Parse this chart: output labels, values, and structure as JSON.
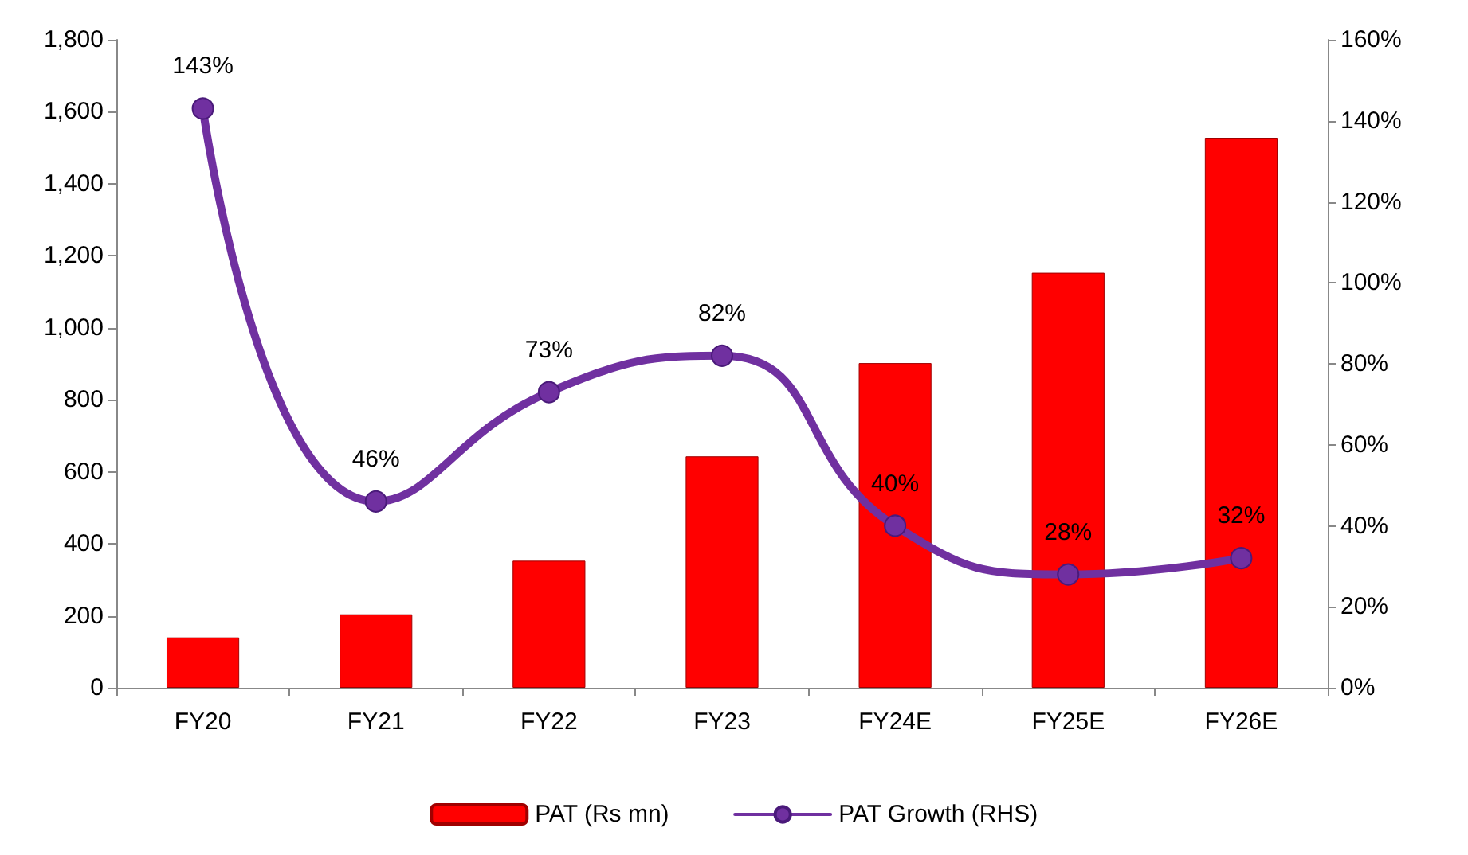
{
  "chart_data": {
    "type": "bar",
    "categories": [
      "FY20",
      "FY21",
      "FY22",
      "FY23",
      "FY24E",
      "FY25E",
      "FY26E"
    ],
    "series": [
      {
        "name": "PAT (Rs mn)",
        "color": "#ff0000",
        "values": [
          140,
          204,
          353,
          643,
          902,
          1153,
          1528
        ]
      },
      {
        "name": "PAT Growth (RHS)",
        "type": "line",
        "axis": "y2",
        "color": "#7030a0",
        "values": [
          143,
          46,
          73,
          82,
          40,
          28,
          32
        ],
        "value_labels": [
          "143%",
          "46%",
          "73%",
          "82%",
          "40%",
          "28%",
          "32%"
        ]
      }
    ],
    "ylim": [
      0,
      1800
    ],
    "yticks": [
      0,
      200,
      400,
      600,
      800,
      {
        "value": 1000,
        "label": "1,000"
      },
      {
        "value": 1200,
        "label": "1,200"
      },
      {
        "value": 1400,
        "label": "1,400"
      },
      {
        "value": 1600,
        "label": "1,600"
      },
      {
        "value": 1800,
        "label": "1,800"
      }
    ],
    "y2lim": [
      0,
      160
    ],
    "y2ticks": [
      {
        "value": 0,
        "label": "0%"
      },
      {
        "value": 20,
        "label": "20%"
      },
      {
        "value": 40,
        "label": "40%"
      },
      {
        "value": 60,
        "label": "60%"
      },
      {
        "value": 80,
        "label": "80%"
      },
      {
        "value": 100,
        "label": "100%"
      },
      {
        "value": 120,
        "label": "120%"
      },
      {
        "value": 140,
        "label": "140%"
      },
      {
        "value": 160,
        "label": "160%"
      }
    ],
    "grid": false,
    "legend": "bottom",
    "marker": "circle",
    "line_style": "solid"
  }
}
